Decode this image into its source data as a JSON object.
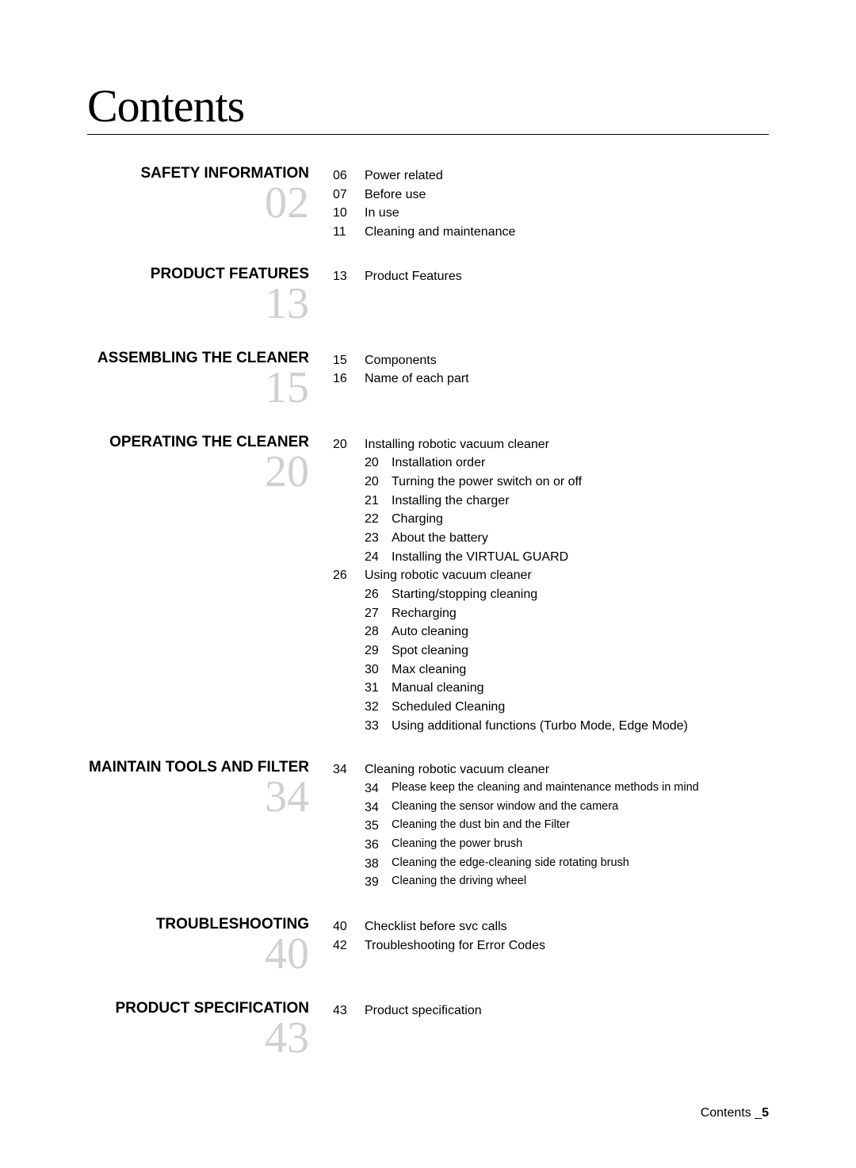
{
  "title": "Contents",
  "footer": {
    "label": "Contents _",
    "page": "5"
  },
  "colors": {
    "background": "#ffffff",
    "text": "#000000",
    "number_ghost": "#d0d0d0"
  },
  "typography": {
    "title_fontsize": 58,
    "section_title_fontsize": 19,
    "body_fontsize": 16,
    "ghost_number_fontsize": 56
  },
  "sections": [
    {
      "title": "SAFETY INFORMATION",
      "number": "02",
      "entries": [
        {
          "page": "06",
          "label": "Power related"
        },
        {
          "page": "07",
          "label": "Before use"
        },
        {
          "page": "10",
          "label": "In use"
        },
        {
          "page": "11",
          "label": "Cleaning and maintenance"
        }
      ]
    },
    {
      "title": "PRODUCT FEATURES",
      "number": "13",
      "entries": [
        {
          "page": "13",
          "label": "Product Features"
        }
      ]
    },
    {
      "title": "ASSEMBLING THE CLEANER",
      "number": "15",
      "entries": [
        {
          "page": "15",
          "label": "Components"
        },
        {
          "page": "16",
          "label": "Name of each part"
        }
      ]
    },
    {
      "title": "OPERATING THE CLEANER",
      "number": "20",
      "entries": [
        {
          "page": "20",
          "label": "Installing robotic vacuum cleaner",
          "subs": [
            {
              "page": "20",
              "label": "Installation order"
            },
            {
              "page": "20",
              "label": "Turning the power switch on or off"
            },
            {
              "page": "21",
              "label": "Installing the charger"
            },
            {
              "page": "22",
              "label": "Charging"
            },
            {
              "page": "23",
              "label": "About the battery"
            },
            {
              "page": "24",
              "label": "Installing the VIRTUAL GUARD"
            }
          ]
        },
        {
          "page": "26",
          "label": "Using robotic vacuum cleaner",
          "subs": [
            {
              "page": "26",
              "label": "Starting/stopping cleaning"
            },
            {
              "page": "27",
              "label": "Recharging"
            },
            {
              "page": "28",
              "label": "Auto cleaning"
            },
            {
              "page": "29",
              "label": "Spot cleaning"
            },
            {
              "page": "30",
              "label": "Max cleaning"
            },
            {
              "page": "31",
              "label": "Manual cleaning"
            },
            {
              "page": "32",
              "label": "Scheduled Cleaning"
            },
            {
              "page": "33",
              "label": "Using additional functions (Turbo Mode, Edge Mode)"
            }
          ]
        }
      ]
    },
    {
      "title": "MAINTAIN TOOLS AND FILTER",
      "number": "34",
      "entries": [
        {
          "page": "34",
          "label": "Cleaning robotic vacuum cleaner",
          "small_subs": true,
          "subs": [
            {
              "page": "34",
              "label": "Please keep the cleaning and maintenance methods in mind"
            },
            {
              "page": "34",
              "label": "Cleaning the sensor window and the camera"
            },
            {
              "page": "35",
              "label": "Cleaning the dust bin and the Filter"
            },
            {
              "page": "36",
              "label": "Cleaning the power brush"
            },
            {
              "page": "38",
              "label": "Cleaning the edge-cleaning side rotating brush"
            },
            {
              "page": "39",
              "label": "Cleaning the driving wheel"
            }
          ]
        }
      ]
    },
    {
      "title": "TROUBLESHOOTING",
      "number": "40",
      "entries": [
        {
          "page": "40",
          "label": "Checklist before svc calls"
        },
        {
          "page": "42",
          "label": "Troubleshooting for Error Codes"
        }
      ]
    },
    {
      "title": "PRODUCT SPECIFICATION",
      "number": "43",
      "entries": [
        {
          "page": "43",
          "label": "Product specification"
        }
      ]
    }
  ]
}
